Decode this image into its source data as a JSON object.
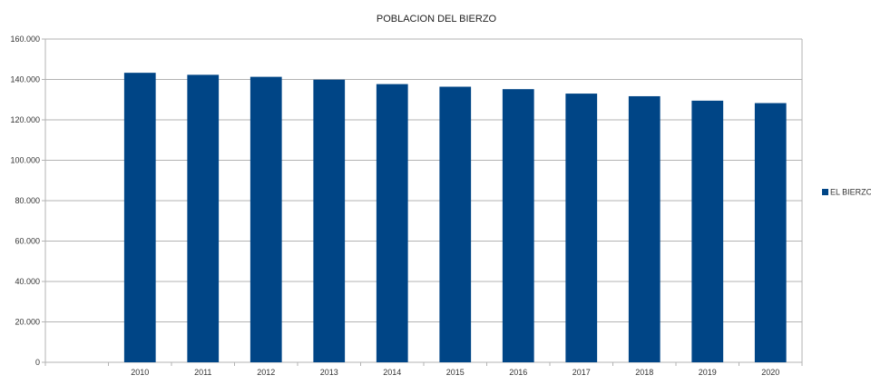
{
  "chart_data": {
    "type": "bar",
    "title": "POBLACION DEL BIERZO",
    "categories": [
      "2010",
      "2011",
      "2012",
      "2013",
      "2014",
      "2015",
      "2016",
      "2017",
      "2018",
      "2019",
      "2020"
    ],
    "series": [
      {
        "name": "EL BIERZO",
        "color": "#004586",
        "values": [
          143300,
          142300,
          141300,
          139900,
          137700,
          136400,
          135200,
          133000,
          131700,
          129500,
          128300
        ]
      }
    ],
    "ylim": [
      0,
      160000
    ],
    "yticks": [
      0,
      20000,
      40000,
      60000,
      80000,
      100000,
      120000,
      140000,
      160000
    ],
    "ytick_labels": [
      "0",
      "20.000",
      "40.000",
      "60.000",
      "80.000",
      "100.000",
      "120.000",
      "140.000",
      "160.000"
    ],
    "xlabel": "",
    "ylabel": "",
    "grid": true,
    "legend_position": "right"
  }
}
